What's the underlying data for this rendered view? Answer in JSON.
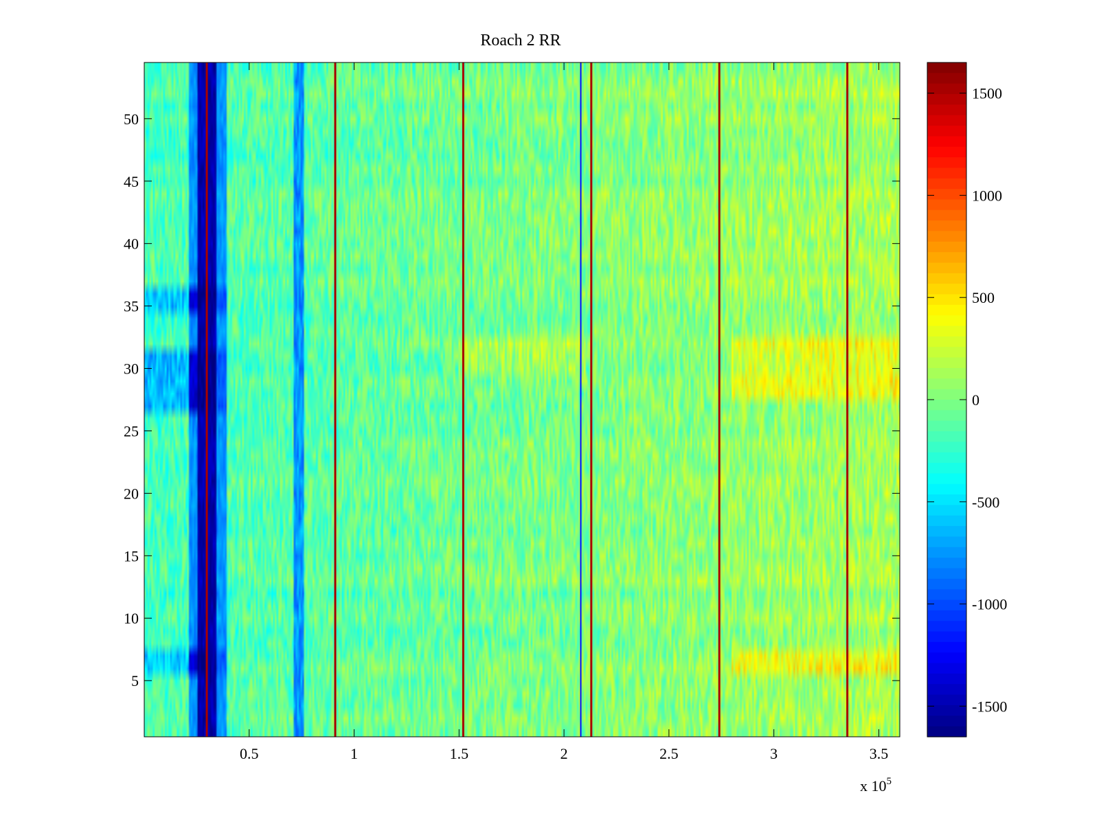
{
  "chart_data": {
    "type": "heatmap",
    "title": "Roach 2 RR",
    "xlabel": "",
    "ylabel": "",
    "xlim": [
      0,
      360000
    ],
    "ylim": [
      0.5,
      54.5
    ],
    "x_multiplier_label": "x 10",
    "x_multiplier_exponent": "5",
    "x_ticks": [
      {
        "value": 50000,
        "label": "0.5"
      },
      {
        "value": 100000,
        "label": "1"
      },
      {
        "value": 150000,
        "label": "1.5"
      },
      {
        "value": 200000,
        "label": "2"
      },
      {
        "value": 250000,
        "label": "2.5"
      },
      {
        "value": 300000,
        "label": "3"
      },
      {
        "value": 350000,
        "label": "3.5"
      }
    ],
    "y_ticks": [
      {
        "value": 5,
        "label": "5"
      },
      {
        "value": 10,
        "label": "10"
      },
      {
        "value": 15,
        "label": "15"
      },
      {
        "value": 20,
        "label": "20"
      },
      {
        "value": 25,
        "label": "25"
      },
      {
        "value": 30,
        "label": "30"
      },
      {
        "value": 35,
        "label": "35"
      },
      {
        "value": 40,
        "label": "40"
      },
      {
        "value": 45,
        "label": "45"
      },
      {
        "value": 50,
        "label": "50"
      }
    ],
    "rows": 54,
    "colormap": "jet",
    "clim": [
      -1650,
      1650
    ],
    "colorbar_ticks": [
      {
        "value": 1500,
        "label": "1500"
      },
      {
        "value": 1000,
        "label": "1000"
      },
      {
        "value": 500,
        "label": "500"
      },
      {
        "value": 0,
        "label": "0"
      },
      {
        "value": -500,
        "label": "-500"
      },
      {
        "value": -1000,
        "label": "-1000"
      },
      {
        "value": -1500,
        "label": "-1500"
      }
    ],
    "features": {
      "background_level": -60,
      "trend_per_x": 0.0009,
      "noise_amplitude": 230,
      "strong_low_band": {
        "x_center": 30000,
        "half_width": 4500,
        "value": -1500
      },
      "weak_low_band": {
        "x_center": 74000,
        "half_width": 2500,
        "value": -750
      },
      "spike_lines": [
        {
          "x": 29800,
          "value": 1650
        },
        {
          "x": 91000,
          "value": 1650
        },
        {
          "x": 152000,
          "value": 1650
        },
        {
          "x": 213000,
          "value": 1650
        },
        {
          "x": 274000,
          "value": 1650
        },
        {
          "x": 335000,
          "value": 1650
        }
      ],
      "dip_lines": [
        {
          "x": 208000,
          "value": -1200
        }
      ],
      "bright_rows": [
        6,
        7,
        28,
        29,
        30,
        31,
        32
      ],
      "dark_rows": [
        6,
        7,
        27,
        28,
        29,
        30,
        31,
        35,
        36
      ]
    }
  }
}
